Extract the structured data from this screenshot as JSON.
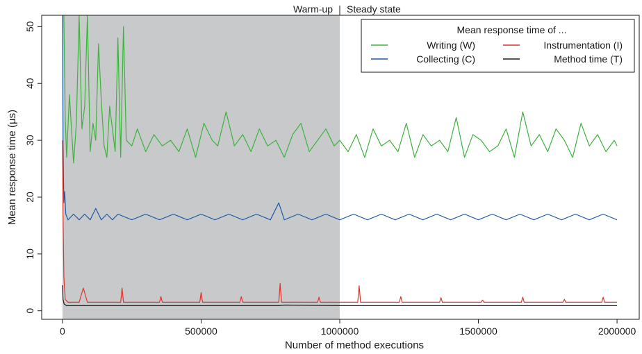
{
  "chart_data": {
    "type": "line",
    "title": "",
    "xlabel": "Number of method executions",
    "ylabel": "Mean response time (µs)",
    "xlim": [
      0,
      2000000
    ],
    "ylim": [
      -1.5,
      52
    ],
    "x_ticks": [
      0,
      500000,
      1000000,
      1500000,
      2000000
    ],
    "x_tick_labels": [
      "0",
      "500000",
      "1000000",
      "1500000",
      "2000000"
    ],
    "y_ticks": [
      0,
      10,
      20,
      30,
      40,
      50
    ],
    "y_tick_labels": [
      "0",
      "10",
      "20",
      "30",
      "40",
      "50"
    ],
    "regions": [
      {
        "label": "Warm-up",
        "x_start": 0,
        "x_end": 1000000,
        "shaded": true,
        "color": "#c8c9cb"
      },
      {
        "label": "Steady state",
        "x_start": 1000000,
        "x_end": 2000000,
        "shaded": false
      }
    ],
    "legend": {
      "title": "Mean response time of ...",
      "placement": "top-right",
      "entries": [
        {
          "label": "Writing (W)",
          "series": "writing"
        },
        {
          "label": "Instrumentation (I)",
          "series": "instrumentation"
        },
        {
          "label": "Collecting (C)",
          "series": "collecting"
        },
        {
          "label": "Method time (T)",
          "series": "method"
        }
      ]
    },
    "series": [
      {
        "key": "writing",
        "name": "Writing (W)",
        "color": "#3cb33c",
        "x": [
          0,
          5000,
          10000,
          15000,
          25000,
          40000,
          50000,
          60000,
          70000,
          80000,
          90000,
          100000,
          110000,
          120000,
          130000,
          140000,
          150000,
          160000,
          170000,
          180000,
          190000,
          200000,
          210000,
          220000,
          230000,
          250000,
          270000,
          300000,
          330000,
          360000,
          390000,
          420000,
          450000,
          480000,
          510000,
          540000,
          560000,
          590000,
          620000,
          650000,
          680000,
          710000,
          740000,
          770000,
          800000,
          830000,
          860000,
          890000,
          920000,
          950000,
          980000,
          1000000,
          1030000,
          1060000,
          1090000,
          1120000,
          1150000,
          1180000,
          1210000,
          1240000,
          1270000,
          1300000,
          1330000,
          1360000,
          1390000,
          1420000,
          1450000,
          1480000,
          1510000,
          1540000,
          1570000,
          1600000,
          1630000,
          1660000,
          1690000,
          1720000,
          1750000,
          1780000,
          1810000,
          1840000,
          1870000,
          1900000,
          1930000,
          1960000,
          1990000,
          2000000
        ],
        "values": [
          52,
          52,
          34,
          27,
          38,
          26,
          33,
          52,
          32,
          36,
          52,
          28,
          33,
          30,
          47,
          37,
          29,
          27,
          36,
          32,
          28,
          48,
          27,
          50,
          30,
          29,
          32,
          28,
          31,
          29,
          30,
          28,
          32,
          27,
          33,
          30,
          29,
          35,
          29,
          31,
          28,
          32,
          29,
          30,
          27,
          31,
          33,
          28,
          30,
          32,
          29,
          30,
          28,
          31,
          27,
          32,
          29,
          30,
          28,
          33,
          27,
          31,
          29,
          30,
          28,
          34,
          27,
          31,
          30,
          28,
          29,
          32,
          27,
          35,
          29,
          31,
          28,
          32,
          30,
          27,
          33,
          29,
          31,
          28,
          30,
          29
        ]
      },
      {
        "key": "collecting",
        "name": "Collecting (C)",
        "color": "#1f5aa6",
        "x": [
          0,
          2000,
          5000,
          8000,
          12000,
          20000,
          40000,
          60000,
          80000,
          100000,
          120000,
          140000,
          160000,
          180000,
          200000,
          250000,
          300000,
          350000,
          400000,
          450000,
          500000,
          550000,
          600000,
          650000,
          700000,
          750000,
          780000,
          800000,
          850000,
          900000,
          950000,
          1000000,
          1050000,
          1100000,
          1150000,
          1200000,
          1250000,
          1300000,
          1350000,
          1400000,
          1450000,
          1500000,
          1550000,
          1600000,
          1650000,
          1700000,
          1750000,
          1800000,
          1850000,
          1900000,
          1950000,
          2000000
        ],
        "values": [
          52,
          30,
          19,
          21,
          17,
          16,
          17,
          16,
          17,
          16,
          18,
          16,
          17,
          16,
          17,
          16,
          17,
          16,
          17,
          16,
          17,
          16,
          17,
          16,
          17,
          16,
          19,
          16,
          17,
          16,
          17,
          16,
          17,
          16,
          17,
          16,
          17,
          16,
          17,
          16,
          17,
          16,
          17,
          16,
          17,
          16,
          17,
          16,
          17,
          16,
          17,
          16
        ]
      },
      {
        "key": "instrumentation",
        "name": "Instrumentation (I)",
        "color": "#e0342a",
        "x": [
          0,
          2000,
          5000,
          10000,
          20000,
          60000,
          75000,
          90000,
          210000,
          215000,
          220000,
          350000,
          355000,
          360000,
          495000,
          500000,
          505000,
          640000,
          645000,
          650000,
          780000,
          785000,
          790000,
          920000,
          925000,
          930000,
          1065000,
          1070000,
          1075000,
          1215000,
          1220000,
          1225000,
          1360000,
          1365000,
          1370000,
          1510000,
          1515000,
          1520000,
          1655000,
          1660000,
          1665000,
          1805000,
          1810000,
          1815000,
          1945000,
          1950000,
          1955000,
          2000000
        ],
        "values": [
          30,
          17,
          6,
          2,
          1.5,
          1.5,
          4,
          1.5,
          1.5,
          4,
          1.5,
          1.5,
          2.5,
          1.5,
          1.5,
          3.2,
          1.5,
          1.5,
          2.5,
          1.5,
          1.5,
          4.8,
          1.5,
          1.5,
          2.4,
          1.5,
          1.5,
          4.4,
          1.5,
          1.5,
          2.5,
          1.5,
          1.5,
          2.3,
          1.5,
          1.5,
          1.9,
          1.5,
          1.5,
          2.4,
          1.5,
          1.5,
          2,
          1.5,
          1.5,
          2.4,
          1.5,
          1.5
        ]
      },
      {
        "key": "method",
        "name": "Method time (T)",
        "color": "#1a1a1a",
        "x": [
          0,
          2000,
          6000,
          15000,
          500000,
          780000,
          800000,
          1000000,
          2000000
        ],
        "values": [
          4.5,
          2,
          1.2,
          0.9,
          0.9,
          0.9,
          1.0,
          0.9,
          0.9
        ]
      }
    ]
  }
}
